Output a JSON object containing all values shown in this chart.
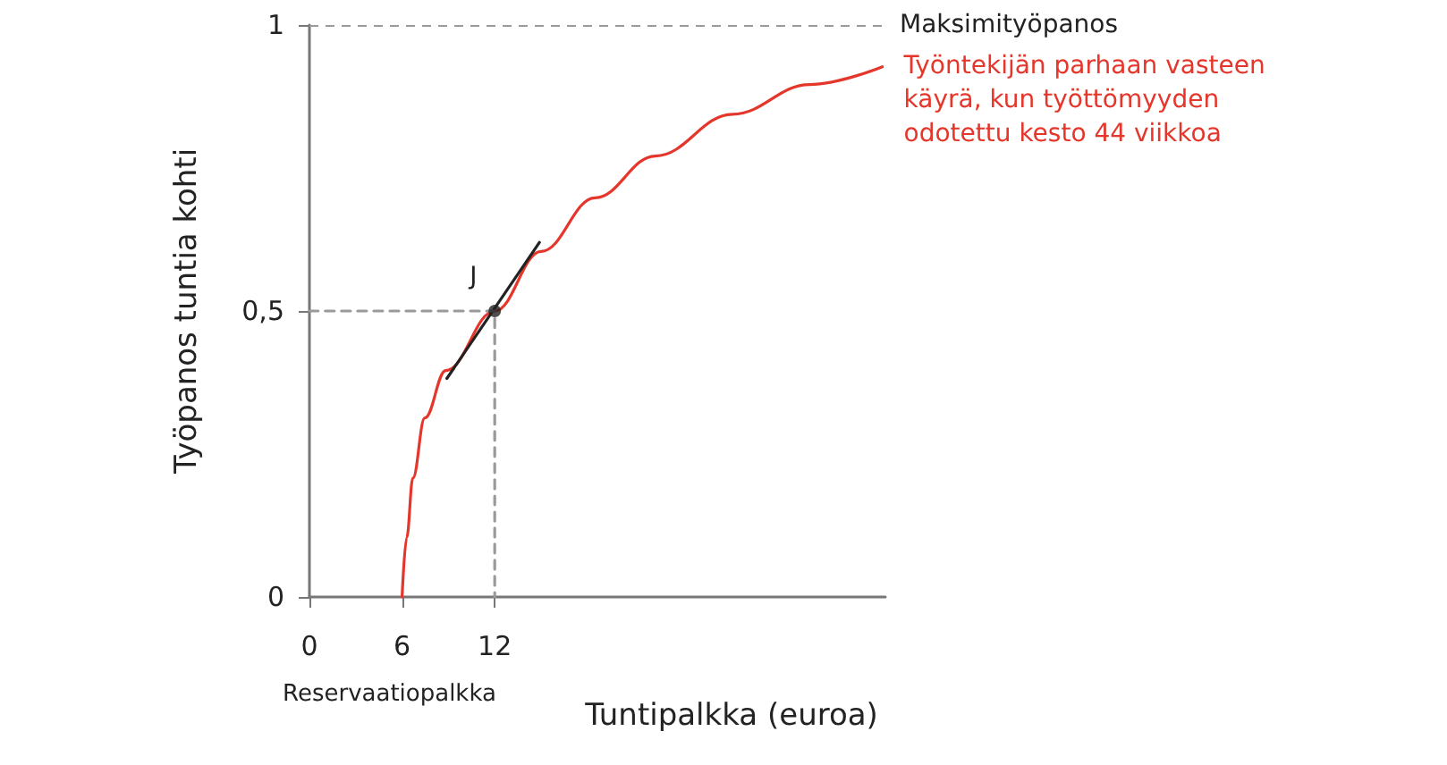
{
  "chart_data": {
    "type": "line",
    "xlabel": "Tuntipalkka (euroa)",
    "ylabel": "Työpanos tuntia kohti",
    "xlim": [
      0,
      37.3
    ],
    "ylim": [
      0,
      1
    ],
    "xticks": [
      0,
      6,
      12
    ],
    "yticks": [
      0,
      {
        "value": 0.5,
        "label": "0,5"
      },
      1
    ],
    "grid": false,
    "legend": false,
    "marker": "none",
    "series": [
      {
        "name": "Työntekijän parhaan vasteen käyrä, kun työttömyyden odotettu kesto 44 viikkoa",
        "color": "#e5362b",
        "line_style": "solid",
        "x": [
          6,
          6.3,
          6.7,
          7.47,
          8.83,
          12,
          15.0,
          18.5,
          22.4,
          27.4,
          32.4,
          37.1
        ],
        "values": [
          0,
          0.104,
          0.208,
          0.313,
          0.396,
          0.5,
          0.604,
          0.698,
          0.771,
          0.844,
          0.896,
          0.927
        ]
      },
      {
        "color": "#222222",
        "line_style": "solid",
        "x": [
          8.9,
          14.9
        ],
        "values": [
          0.382,
          0.62
        ]
      },
      {
        "color": "#9a9a9a",
        "line_style": "dashed",
        "x": [
          0,
          12,
          12
        ],
        "values": [
          0.5,
          0.5,
          0
        ]
      },
      {
        "type": "scatter",
        "color": "#222222",
        "marker": "circle",
        "x": [
          12
        ],
        "values": [
          0.5
        ]
      }
    ],
    "ref_lines": [
      {
        "axis": "y",
        "value": 1,
        "label": "Maksimityöpanos",
        "color": "#9a9a9a",
        "line_style": "dashed"
      }
    ],
    "annotations": [
      {
        "text": "J",
        "x": 12,
        "y": 0.5
      },
      "Reservaatiopalkka"
    ]
  }
}
